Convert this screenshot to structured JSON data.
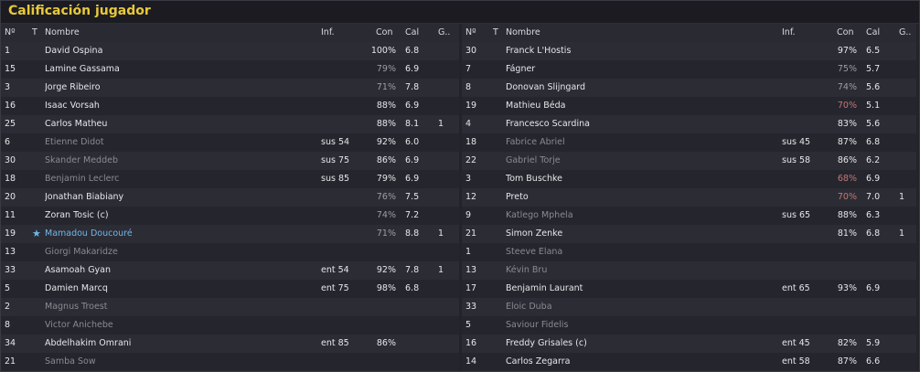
{
  "title": "Calificación jugador",
  "columns": {
    "no": "Nº",
    "t": "T",
    "name": "Nombre",
    "inf": "Inf.",
    "con": "Con",
    "cal": "Cal",
    "g": "G.."
  },
  "left": [
    {
      "no": "1",
      "name": "David Ospina",
      "inf": "",
      "con": "100%",
      "cal": "6.8",
      "g": "",
      "dim": false,
      "con_level": "hi",
      "star": false
    },
    {
      "no": "15",
      "name": "Lamine Gassama",
      "inf": "",
      "con": "79%",
      "cal": "6.9",
      "g": "",
      "dim": false,
      "con_level": "mid",
      "star": false
    },
    {
      "no": "3",
      "name": "Jorge Ribeiro",
      "inf": "",
      "con": "71%",
      "cal": "7.8",
      "g": "",
      "dim": false,
      "con_level": "mid",
      "star": false
    },
    {
      "no": "16",
      "name": "Isaac Vorsah",
      "inf": "",
      "con": "88%",
      "cal": "6.9",
      "g": "",
      "dim": false,
      "con_level": "hi",
      "star": false
    },
    {
      "no": "25",
      "name": "Carlos Matheu",
      "inf": "",
      "con": "88%",
      "cal": "8.1",
      "g": "1",
      "dim": false,
      "con_level": "hi",
      "star": false
    },
    {
      "no": "6",
      "name": "Etienne Didot",
      "inf": "sus 54",
      "con": "92%",
      "cal": "6.0",
      "g": "",
      "dim": true,
      "con_level": "hi",
      "star": false
    },
    {
      "no": "30",
      "name": "Skander Meddeb",
      "inf": "sus 75",
      "con": "86%",
      "cal": "6.9",
      "g": "",
      "dim": true,
      "con_level": "hi",
      "star": false
    },
    {
      "no": "18",
      "name": "Benjamin Leclerc",
      "inf": "sus 85",
      "con": "79%",
      "cal": "6.9",
      "g": "",
      "dim": true,
      "con_level": "hi",
      "star": false
    },
    {
      "no": "20",
      "name": "Jonathan Biabiany",
      "inf": "",
      "con": "76%",
      "cal": "7.5",
      "g": "",
      "dim": false,
      "con_level": "mid",
      "star": false
    },
    {
      "no": "11",
      "name": "Zoran Tosic (c)",
      "inf": "",
      "con": "74%",
      "cal": "7.2",
      "g": "",
      "dim": false,
      "con_level": "mid",
      "star": false
    },
    {
      "no": "19",
      "name": "Mamadou Doucouré",
      "inf": "",
      "con": "71%",
      "cal": "8.8",
      "g": "1",
      "dim": false,
      "con_level": "mid",
      "star": true
    },
    {
      "no": "13",
      "name": "Giorgi Makaridze",
      "inf": "",
      "con": "",
      "cal": "",
      "g": "",
      "dim": true,
      "con_level": "hi",
      "star": false
    },
    {
      "no": "33",
      "name": "Asamoah Gyan",
      "inf": "ent 54",
      "con": "92%",
      "cal": "7.8",
      "g": "1",
      "dim": false,
      "con_level": "hi",
      "star": false
    },
    {
      "no": "5",
      "name": "Damien Marcq",
      "inf": "ent 75",
      "con": "98%",
      "cal": "6.8",
      "g": "",
      "dim": false,
      "con_level": "hi",
      "star": false
    },
    {
      "no": "2",
      "name": "Magnus Troest",
      "inf": "",
      "con": "",
      "cal": "",
      "g": "",
      "dim": true,
      "con_level": "hi",
      "star": false
    },
    {
      "no": "8",
      "name": "Victor Anichebe",
      "inf": "",
      "con": "",
      "cal": "",
      "g": "",
      "dim": true,
      "con_level": "hi",
      "star": false
    },
    {
      "no": "34",
      "name": "Abdelhakim Omrani",
      "inf": "ent 85",
      "con": "86%",
      "cal": "",
      "g": "",
      "dim": false,
      "con_level": "hi",
      "star": false
    },
    {
      "no": "21",
      "name": "Samba Sow",
      "inf": "",
      "con": "",
      "cal": "",
      "g": "",
      "dim": true,
      "con_level": "hi",
      "star": false
    }
  ],
  "right": [
    {
      "no": "30",
      "name": "Franck L'Hostis",
      "inf": "",
      "con": "97%",
      "cal": "6.5",
      "g": "",
      "dim": false,
      "con_level": "hi",
      "star": false
    },
    {
      "no": "7",
      "name": "Fágner",
      "inf": "",
      "con": "75%",
      "cal": "5.7",
      "g": "",
      "dim": false,
      "con_level": "mid",
      "star": false
    },
    {
      "no": "8",
      "name": "Donovan Slijngard",
      "inf": "",
      "con": "74%",
      "cal": "5.6",
      "g": "",
      "dim": false,
      "con_level": "mid",
      "star": false
    },
    {
      "no": "19",
      "name": "Mathieu Béda",
      "inf": "",
      "con": "70%",
      "cal": "5.1",
      "g": "",
      "dim": false,
      "con_level": "low",
      "star": false
    },
    {
      "no": "4",
      "name": "Francesco Scardina",
      "inf": "",
      "con": "83%",
      "cal": "5.6",
      "g": "",
      "dim": false,
      "con_level": "hi",
      "star": false
    },
    {
      "no": "18",
      "name": "Fabrice Abriel",
      "inf": "sus 45",
      "con": "87%",
      "cal": "6.8",
      "g": "",
      "dim": true,
      "con_level": "hi",
      "star": false
    },
    {
      "no": "22",
      "name": "Gabriel Torje",
      "inf": "sus 58",
      "con": "86%",
      "cal": "6.2",
      "g": "",
      "dim": true,
      "con_level": "hi",
      "star": false
    },
    {
      "no": "3",
      "name": "Tom Buschke",
      "inf": "",
      "con": "68%",
      "cal": "6.9",
      "g": "",
      "dim": false,
      "con_level": "low",
      "star": false
    },
    {
      "no": "12",
      "name": "Preto",
      "inf": "",
      "con": "70%",
      "cal": "7.0",
      "g": "1",
      "dim": false,
      "con_level": "low",
      "star": false
    },
    {
      "no": "9",
      "name": "Katlego Mphela",
      "inf": "sus 65",
      "con": "88%",
      "cal": "6.3",
      "g": "",
      "dim": true,
      "con_level": "hi",
      "star": false
    },
    {
      "no": "21",
      "name": "Simon Zenke",
      "inf": "",
      "con": "81%",
      "cal": "6.8",
      "g": "1",
      "dim": false,
      "con_level": "hi",
      "star": false
    },
    {
      "no": "1",
      "name": "Steeve Elana",
      "inf": "",
      "con": "",
      "cal": "",
      "g": "",
      "dim": true,
      "con_level": "hi",
      "star": false
    },
    {
      "no": "13",
      "name": "Kévin Bru",
      "inf": "",
      "con": "",
      "cal": "",
      "g": "",
      "dim": true,
      "con_level": "hi",
      "star": false
    },
    {
      "no": "17",
      "name": "Benjamin Laurant",
      "inf": "ent 65",
      "con": "93%",
      "cal": "6.9",
      "g": "",
      "dim": false,
      "con_level": "hi",
      "star": false
    },
    {
      "no": "33",
      "name": "Eloic Duba",
      "inf": "",
      "con": "",
      "cal": "",
      "g": "",
      "dim": true,
      "con_level": "hi",
      "star": false
    },
    {
      "no": "5",
      "name": "Saviour Fidelis",
      "inf": "",
      "con": "",
      "cal": "",
      "g": "",
      "dim": true,
      "con_level": "hi",
      "star": false
    },
    {
      "no": "16",
      "name": "Freddy Grisales (c)",
      "inf": "ent 45",
      "con": "82%",
      "cal": "5.9",
      "g": "",
      "dim": false,
      "con_level": "hi",
      "star": false
    },
    {
      "no": "14",
      "name": "Carlos Zegarra",
      "inf": "ent 58",
      "con": "87%",
      "cal": "6.6",
      "g": "",
      "dim": false,
      "con_level": "hi",
      "star": false
    }
  ]
}
